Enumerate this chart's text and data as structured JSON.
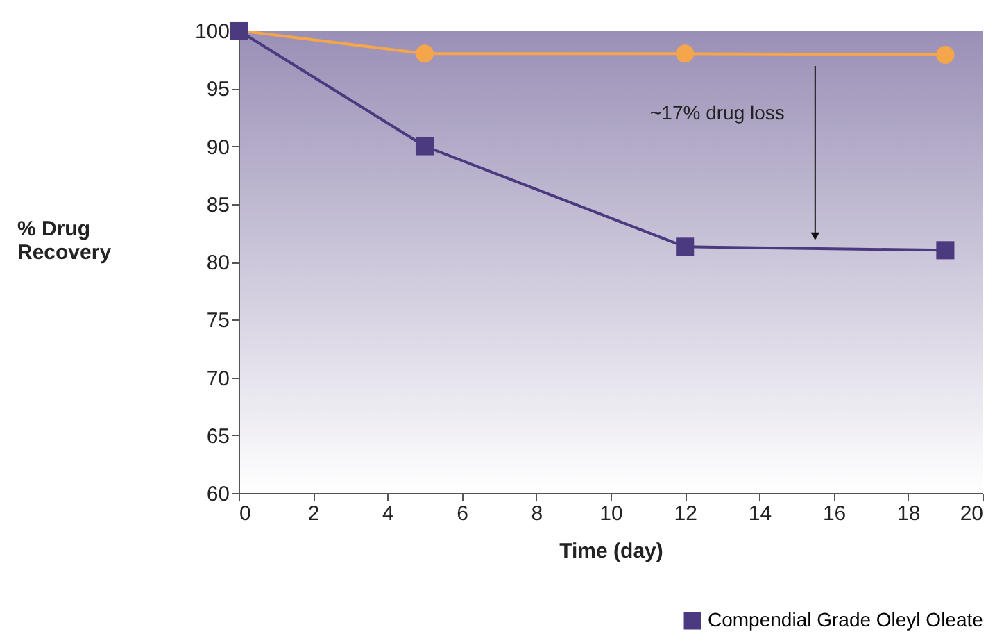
{
  "chart_data": {
    "type": "line",
    "xlabel": "Time (day)",
    "ylabel": "% Drug Recovery",
    "x": [
      0,
      5,
      12,
      19
    ],
    "series": [
      {
        "color": "#f5a54a",
        "marker": "circle",
        "values": [
          100,
          98,
          98,
          97.9
        ]
      },
      {
        "name": "Compendial Grade Oleyl Oleate",
        "color": "#4b3a80",
        "marker": "square",
        "values": [
          100,
          90,
          81.3,
          81
        ]
      }
    ],
    "xlim": [
      0,
      20
    ],
    "xticks": [
      0,
      2,
      4,
      6,
      8,
      10,
      12,
      14,
      16,
      18,
      20
    ],
    "ylim": [
      60,
      100
    ],
    "yticks": [
      60,
      65,
      70,
      75,
      80,
      85,
      90,
      95,
      100
    ],
    "grid": false,
    "legend": "bottom",
    "annotations": [
      "~17% drug loss"
    ]
  }
}
